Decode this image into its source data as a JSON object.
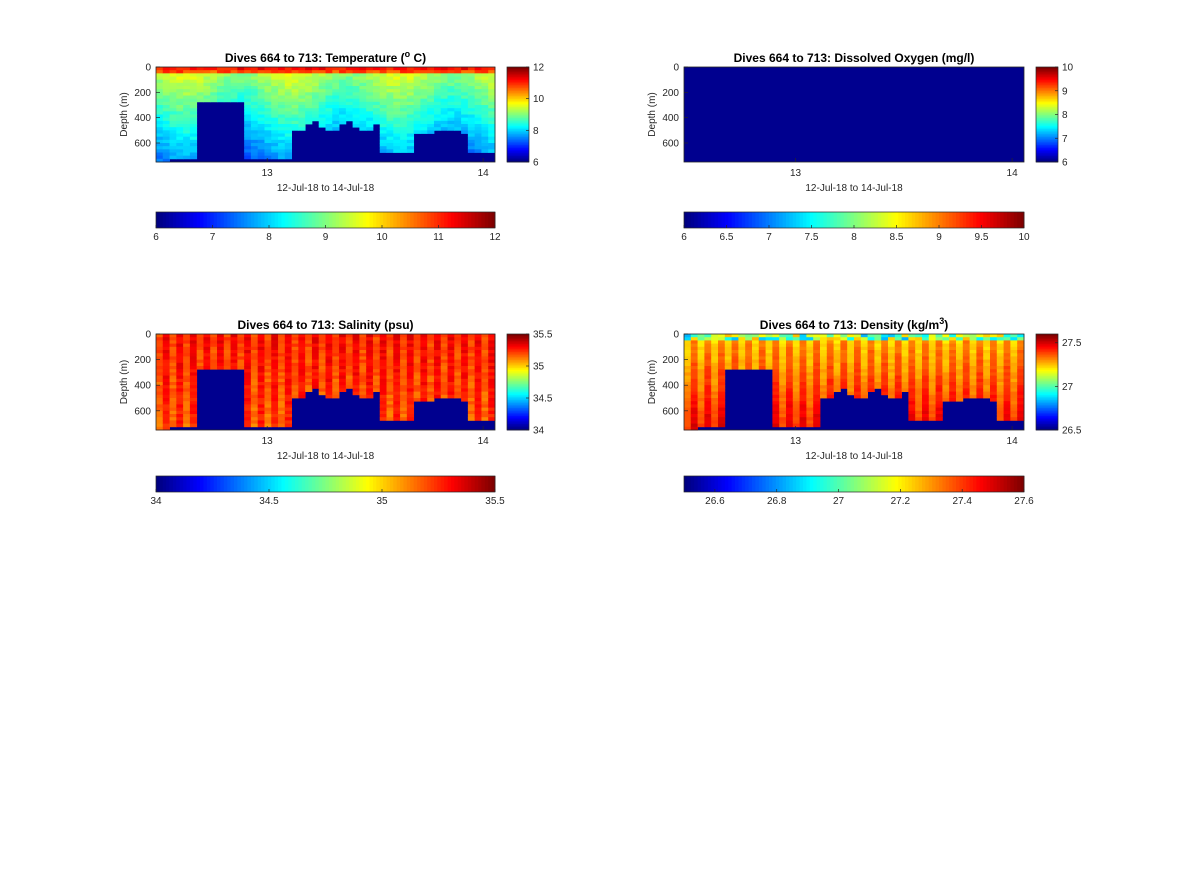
{
  "chart_data": [
    {
      "type": "heatmap",
      "title": "Dives 664 to 713: Temperature (",
      "title_sup": "o",
      "title_tail": " C)",
      "xlabel": "12-Jul-18 to 14-Jul-18",
      "ylabel": "Depth (m)",
      "x_ticks": [
        "13",
        "14"
      ],
      "y_ticks": [
        "0",
        "200",
        "400",
        "600"
      ],
      "ylim": [
        0,
        750
      ],
      "clim": [
        6,
        12
      ],
      "colorbar_ticks": [
        "6",
        "8",
        "10",
        "12"
      ],
      "horizontal_colorbar_ticks": [
        "6",
        "7",
        "8",
        "9",
        "10",
        "11",
        "12"
      ],
      "pattern": "temperature"
    },
    {
      "type": "heatmap",
      "title": "Dives 664 to 713: Dissolved Oxygen (mg/l)",
      "title_sup": "",
      "title_tail": "",
      "xlabel": "12-Jul-18 to 14-Jul-18",
      "ylabel": "Depth (m)",
      "x_ticks": [
        "13",
        "14"
      ],
      "y_ticks": [
        "0",
        "200",
        "400",
        "600"
      ],
      "ylim": [
        0,
        750
      ],
      "clim": [
        6,
        10
      ],
      "colorbar_ticks": [
        "6",
        "7",
        "8",
        "9",
        "10"
      ],
      "horizontal_colorbar_ticks": [
        "6",
        "6.5",
        "7",
        "7.5",
        "8",
        "8.5",
        "9",
        "9.5",
        "10"
      ],
      "pattern": "oxygen"
    },
    {
      "type": "heatmap",
      "title": "Dives 664 to 713: Salinity (psu)",
      "title_sup": "",
      "title_tail": "",
      "xlabel": "12-Jul-18 to 14-Jul-18",
      "ylabel": "Depth (m)",
      "x_ticks": [
        "13",
        "14"
      ],
      "y_ticks": [
        "0",
        "200",
        "400",
        "600"
      ],
      "ylim": [
        0,
        750
      ],
      "clim": [
        34,
        35.5
      ],
      "colorbar_ticks": [
        "34",
        "34.5",
        "35",
        "35.5"
      ],
      "horizontal_colorbar_ticks": [
        "34",
        "34.5",
        "35",
        "35.5"
      ],
      "pattern": "salinity"
    },
    {
      "type": "heatmap",
      "title": "Dives 664 to 713: Density (kg/m",
      "title_sup": "3",
      "title_tail": ")",
      "xlabel": "12-Jul-18 to 14-Jul-18",
      "ylabel": "Depth (m)",
      "x_ticks": [
        "13",
        "14"
      ],
      "y_ticks": [
        "0",
        "200",
        "400",
        "600"
      ],
      "ylim": [
        0,
        750
      ],
      "clim": [
        26.5,
        27.6
      ],
      "colorbar_ticks": [
        "26.5",
        "27",
        "27.5"
      ],
      "horizontal_colorbar_ticks": [
        "26.6",
        "26.8",
        "27",
        "27.2",
        "27.4",
        "27.6"
      ],
      "pattern": "density"
    }
  ]
}
